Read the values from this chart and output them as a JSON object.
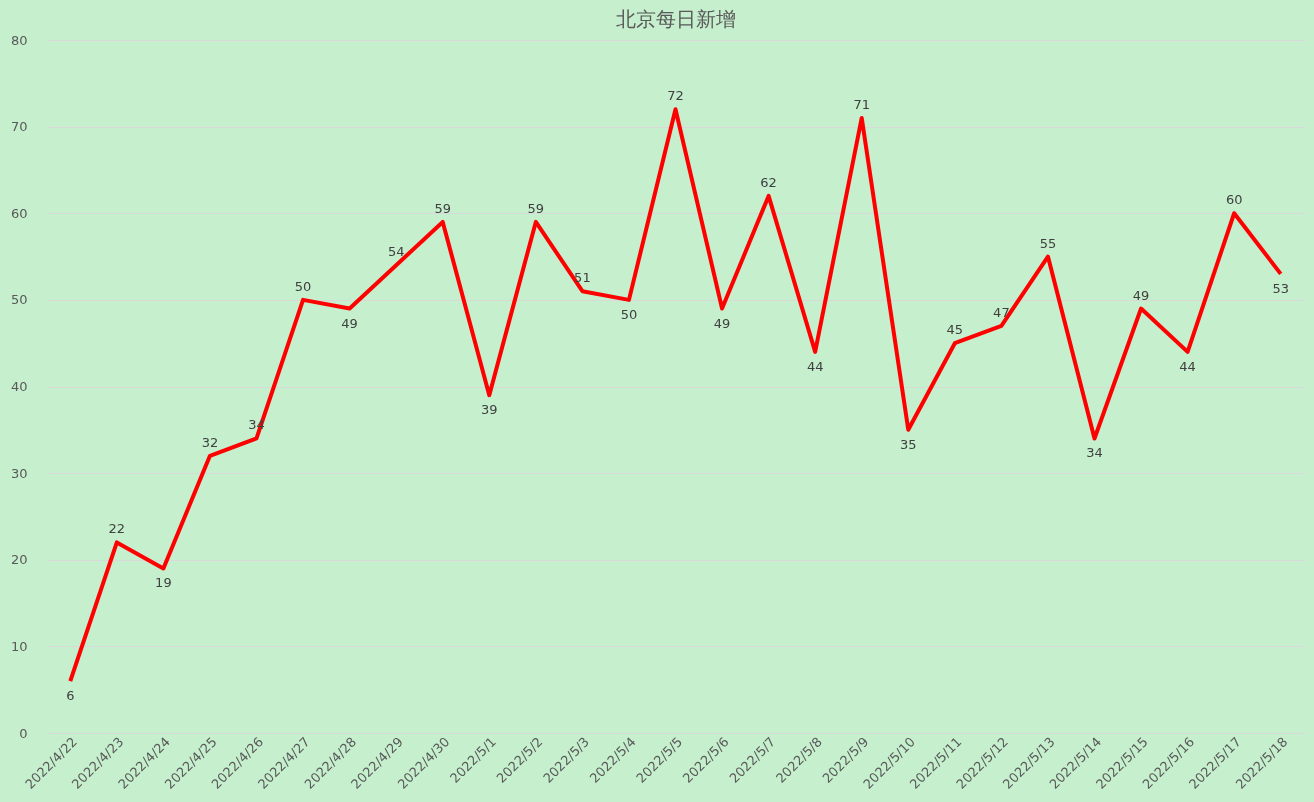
{
  "chart_data": {
    "type": "line",
    "title": "北京每日新增",
    "categories": [
      "2022/4/22",
      "2022/4/23",
      "2022/4/24",
      "2022/4/25",
      "2022/4/26",
      "2022/4/27",
      "2022/4/28",
      "2022/4/29",
      "2022/4/30",
      "2022/5/1",
      "2022/5/2",
      "2022/5/3",
      "2022/5/4",
      "2022/5/5",
      "2022/5/6",
      "2022/5/7",
      "2022/5/8",
      "2022/5/9",
      "2022/5/10",
      "2022/5/11",
      "2022/5/12",
      "2022/5/13",
      "2022/5/14",
      "2022/5/15",
      "2022/5/16",
      "2022/5/17",
      "2022/5/18"
    ],
    "series": [
      {
        "color": "#ff0000",
        "values": [
          6,
          22,
          19,
          32,
          34,
          50,
          49,
          54,
          59,
          39,
          59,
          51,
          50,
          72,
          49,
          62,
          44,
          71,
          35,
          45,
          47,
          55,
          34,
          49,
          44,
          60,
          53
        ]
      }
    ],
    "ylim": [
      0,
      80
    ],
    "yticks": [
      0,
      10,
      20,
      30,
      40,
      50,
      60,
      70,
      80
    ],
    "grid": "y",
    "data_labels": true,
    "marker": "none",
    "line_style": "solid"
  }
}
